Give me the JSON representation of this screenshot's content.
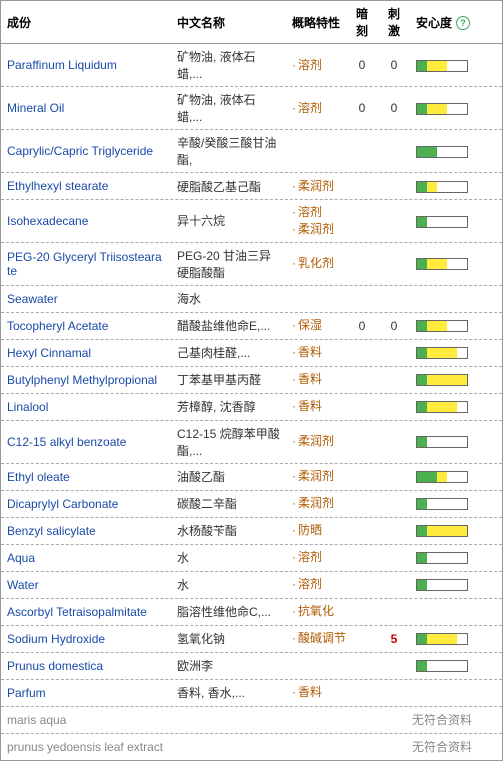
{
  "headers": {
    "ingredient": "成份",
    "chinese": "中文名称",
    "features": "概略特性",
    "skin": "暗刻",
    "irritant": "刺激",
    "safety": "安心度"
  },
  "no_data_text": "无符合资料",
  "safety_colors": {
    "g": "#4caf50",
    "y": "#ffeb3b",
    "e": "#ffffff"
  },
  "rows": [
    {
      "ingredient": "Paraffinum Liquidum",
      "chinese": "矿物油, 液体石蜡,...",
      "features": [
        "溶剂"
      ],
      "skin": "0",
      "irritant": "0",
      "safety": [
        "g",
        "y",
        "y",
        "e",
        "e"
      ]
    },
    {
      "ingredient": "Mineral Oil",
      "chinese": "矿物油, 液体石蜡,...",
      "features": [
        "溶剂"
      ],
      "skin": "0",
      "irritant": "0",
      "safety": [
        "g",
        "y",
        "y",
        "e",
        "e"
      ]
    },
    {
      "ingredient": "Caprylic/Capric Triglyceride",
      "chinese": "辛酸/癸酸三酸甘油酯,",
      "features": [],
      "skin": "",
      "irritant": "",
      "safety": [
        "g",
        "g",
        "e",
        "e",
        "e"
      ]
    },
    {
      "ingredient": "Ethylhexyl stearate",
      "chinese": "硬脂酸乙基己酯",
      "features": [
        "柔润剂"
      ],
      "skin": "",
      "irritant": "",
      "safety": [
        "g",
        "y",
        "e",
        "e",
        "e"
      ]
    },
    {
      "ingredient": "Isohexadecane",
      "chinese": "异十六烷",
      "features": [
        "溶剂",
        "柔润剂"
      ],
      "skin": "",
      "irritant": "",
      "safety": [
        "g",
        "e",
        "e",
        "e",
        "e"
      ]
    },
    {
      "ingredient": "PEG-20 Glyceryl Triisostearate",
      "chinese": "PEG-20 甘油三异硬脂酸酯",
      "features": [
        "乳化剂"
      ],
      "skin": "",
      "irritant": "",
      "safety": [
        "g",
        "y",
        "y",
        "e",
        "e"
      ]
    },
    {
      "ingredient": "Seawater",
      "chinese": "海水",
      "features": [],
      "skin": "",
      "irritant": "",
      "safety": null
    },
    {
      "ingredient": "Tocopheryl Acetate",
      "chinese": "醋酸盐维他命E,...",
      "features": [
        "保湿"
      ],
      "skin": "0",
      "irritant": "0",
      "safety": [
        "g",
        "y",
        "y",
        "e",
        "e"
      ]
    },
    {
      "ingredient": "Hexyl Cinnamal",
      "chinese": "己基肉桂醛,...",
      "features": [
        "香料"
      ],
      "skin": "",
      "irritant": "",
      "safety": [
        "g",
        "y",
        "y",
        "y",
        "e"
      ]
    },
    {
      "ingredient": "Butylphenyl Methylpropional",
      "chinese": "丁苯基甲基丙醛",
      "features": [
        "香料"
      ],
      "skin": "",
      "irritant": "",
      "safety": [
        "g",
        "y",
        "y",
        "y",
        "y"
      ]
    },
    {
      "ingredient": "Linalool",
      "chinese": "芳樟醇, 沈香醇",
      "features": [
        "香料"
      ],
      "skin": "",
      "irritant": "",
      "safety": [
        "g",
        "y",
        "y",
        "y",
        "e"
      ]
    },
    {
      "ingredient": "C12-15 alkyl benzoate",
      "chinese": "C12-15 烷醇苯甲酸酯,...",
      "features": [
        "柔润剂"
      ],
      "skin": "",
      "irritant": "",
      "safety": [
        "g",
        "e",
        "e",
        "e",
        "e"
      ]
    },
    {
      "ingredient": "Ethyl oleate",
      "chinese": "油酸乙酯",
      "features": [
        "柔润剂"
      ],
      "skin": "",
      "irritant": "",
      "safety": [
        "g",
        "g",
        "y",
        "e",
        "e"
      ]
    },
    {
      "ingredient": "Dicaprylyl Carbonate",
      "chinese": "碳酸二辛酯",
      "features": [
        "柔润剂"
      ],
      "skin": "",
      "irritant": "",
      "safety": [
        "g",
        "e",
        "e",
        "e",
        "e"
      ]
    },
    {
      "ingredient": "Benzyl salicylate",
      "chinese": "水杨酸苄酯",
      "features": [
        "防晒"
      ],
      "skin": "",
      "irritant": "",
      "safety": [
        "g",
        "y",
        "y",
        "y",
        "y"
      ]
    },
    {
      "ingredient": "Aqua",
      "chinese": "水",
      "features": [
        "溶剂"
      ],
      "skin": "",
      "irritant": "",
      "safety": [
        "g",
        "e",
        "e",
        "e",
        "e"
      ]
    },
    {
      "ingredient": "Water",
      "chinese": "水",
      "features": [
        "溶剂"
      ],
      "skin": "",
      "irritant": "",
      "safety": [
        "g",
        "e",
        "e",
        "e",
        "e"
      ]
    },
    {
      "ingredient": "Ascorbyl Tetraisopalmitate",
      "chinese": "脂溶性维他命C,...",
      "features": [
        "抗氧化"
      ],
      "skin": "",
      "irritant": "",
      "safety": null
    },
    {
      "ingredient": "Sodium Hydroxide",
      "chinese": "氢氧化钠",
      "features": [
        "酸碱调节"
      ],
      "skin": "",
      "irritant": "5",
      "irritant_red": true,
      "safety": [
        "g",
        "y",
        "y",
        "y",
        "e"
      ]
    },
    {
      "ingredient": "Prunus domestica",
      "chinese": "欧洲李",
      "features": [],
      "skin": "",
      "irritant": "",
      "safety": [
        "g",
        "e",
        "e",
        "e",
        "e"
      ]
    },
    {
      "ingredient": "Parfum",
      "chinese": "香料, 香水,...",
      "features": [
        "香料"
      ],
      "skin": "",
      "irritant": "",
      "safety": null
    },
    {
      "ingredient": "maris aqua",
      "nodata": true
    },
    {
      "ingredient": "prunus yedoensis leaf extract",
      "nodata": true
    }
  ]
}
